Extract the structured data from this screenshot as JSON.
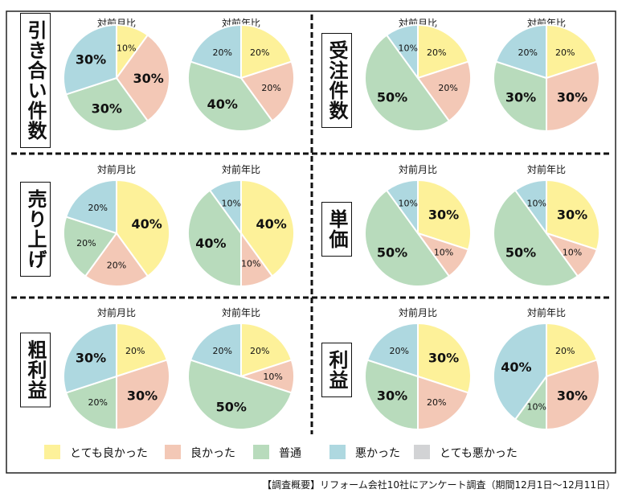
{
  "chart_data": [
    {
      "type": "pie",
      "title": "引き合い件数",
      "charts": [
        {
          "label": "対前月比",
          "values": [
            10,
            30,
            30,
            30
          ]
        },
        {
          "label": "対前年比",
          "values": [
            20,
            20,
            40,
            20
          ]
        }
      ]
    },
    {
      "type": "pie",
      "title": "受注件数",
      "charts": [
        {
          "label": "対前月比",
          "values": [
            20,
            20,
            50,
            10
          ]
        },
        {
          "label": "対前年比",
          "values": [
            20,
            30,
            30,
            20
          ]
        }
      ]
    },
    {
      "type": "pie",
      "title": "売り上げ",
      "charts": [
        {
          "label": "対前月比",
          "values": [
            40,
            20,
            20,
            20
          ]
        },
        {
          "label": "対前年比",
          "values": [
            40,
            10,
            40,
            10
          ]
        }
      ]
    },
    {
      "type": "pie",
      "title": "単価",
      "charts": [
        {
          "label": "対前月比",
          "values": [
            30,
            10,
            50,
            10
          ]
        },
        {
          "label": "対前年比",
          "values": [
            30,
            10,
            50,
            10
          ]
        }
      ]
    },
    {
      "type": "pie",
      "title": "粗利益",
      "charts": [
        {
          "label": "対前月比",
          "values": [
            20,
            30,
            20,
            30
          ]
        },
        {
          "label": "対前年比",
          "values": [
            20,
            10,
            50,
            20
          ]
        }
      ]
    },
    {
      "type": "pie",
      "title": "利益",
      "charts": [
        {
          "label": "対前月比",
          "values": [
            30,
            20,
            30,
            20
          ]
        },
        {
          "label": "対前年比",
          "values": [
            20,
            30,
            10,
            40
          ]
        }
      ]
    }
  ],
  "legend": {
    "placement": "bottom",
    "items": [
      {
        "label": "とても良かった",
        "color": "#fdf199"
      },
      {
        "label": "良かった",
        "color": "#f3c8b6"
      },
      {
        "label": "普通",
        "color": "#b8dbbc"
      },
      {
        "label": "悪かった",
        "color": "#aed8e0"
      },
      {
        "label": "とても悪かった",
        "color": "#d2d3d5"
      }
    ]
  },
  "footer": "【調査概要】リフォーム会社10社にアンケート調査（期間12月1日～12月11日）"
}
